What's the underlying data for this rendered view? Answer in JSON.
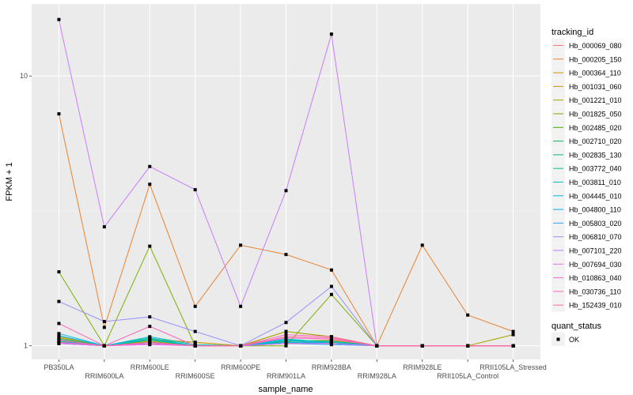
{
  "chart_data": {
    "type": "line",
    "title": "",
    "xlabel": "sample_name",
    "ylabel": "FPKM + 1",
    "yscale": "log10",
    "ylim": [
      0.89,
      18.5
    ],
    "yticks": [
      1,
      10
    ],
    "ytick_labels": [
      "1",
      "10"
    ],
    "grid": true,
    "legend_placement": "right",
    "legend_title": "tracking_id",
    "legend2_title": "quant_status",
    "legend2_items": [
      "OK"
    ],
    "categories": [
      "PB350LA",
      "RRIM600LA",
      "RRIM600LE",
      "RRIM600SE",
      "RRIM600PE",
      "RRIM901LA",
      "RRIM928BA",
      "RRIM928LA",
      "RRIM928LE",
      "RRII105LA_Control",
      "RRII105LA_Stressed"
    ],
    "series": [
      {
        "name": "Hb_000069_080",
        "color": "#F8766D",
        "values": [
          1.05,
          1,
          1.02,
          1,
          1,
          1.02,
          1.03,
          1,
          1,
          1,
          1
        ]
      },
      {
        "name": "Hb_000205_150",
        "color": "#EA8331",
        "values": [
          7.24,
          1.17,
          3.97,
          1.4,
          2.36,
          2.18,
          1.91,
          1,
          2.36,
          1.3,
          1.13
        ]
      },
      {
        "name": "Hb_000364_110",
        "color": "#D89000",
        "values": [
          1.03,
          1,
          1.06,
          1.03,
          1,
          1.04,
          1.05,
          1,
          1,
          1,
          1
        ]
      },
      {
        "name": "Hb_001031_060",
        "color": "#C09B00",
        "values": [
          1.08,
          1,
          1.05,
          1.03,
          1,
          1.13,
          1.08,
          1,
          1,
          1,
          1
        ]
      },
      {
        "name": "Hb_001221_010",
        "color": "#A3A500",
        "values": [
          1.07,
          1,
          1.04,
          1,
          1,
          1.13,
          1.08,
          1,
          1,
          1,
          1.1
        ]
      },
      {
        "name": "Hb_001825_050",
        "color": "#7CAE00",
        "values": [
          1.88,
          1,
          2.34,
          1,
          1,
          1,
          1.55,
          1,
          1,
          1,
          1
        ]
      },
      {
        "name": "Hb_002485_020",
        "color": "#39B600",
        "values": [
          1.04,
          1,
          1.03,
          1,
          1,
          1.02,
          1.04,
          1,
          1,
          1,
          1
        ]
      },
      {
        "name": "Hb_002710_020",
        "color": "#00BB4E",
        "values": [
          1.03,
          1,
          1.02,
          1,
          1,
          1.03,
          1.02,
          1,
          1,
          1,
          1
        ]
      },
      {
        "name": "Hb_002835_130",
        "color": "#00BF7D",
        "values": [
          1.02,
          1,
          1.05,
          1,
          1,
          1.04,
          1.03,
          1,
          1,
          1,
          1
        ]
      },
      {
        "name": "Hb_003772_040",
        "color": "#00C1A3",
        "values": [
          1.06,
          1,
          1.07,
          1,
          1,
          1.05,
          1.04,
          1,
          1,
          1,
          1
        ]
      },
      {
        "name": "Hb_003811_010",
        "color": "#00BFC4",
        "values": [
          1.04,
          1,
          1.08,
          1.01,
          1,
          1.06,
          1.03,
          1,
          1,
          1,
          1
        ]
      },
      {
        "name": "Hb_004445_010",
        "color": "#00BAE0",
        "values": [
          1.11,
          1,
          1.06,
          1,
          1,
          1.05,
          1.02,
          1,
          1,
          1,
          1
        ]
      },
      {
        "name": "Hb_004800_110",
        "color": "#00B0F6",
        "values": [
          1.09,
          1,
          1.03,
          1,
          1,
          1.03,
          1.02,
          1,
          1,
          1,
          1
        ]
      },
      {
        "name": "Hb_005803_020",
        "color": "#35A2FF",
        "values": [
          1.02,
          1,
          1.02,
          1,
          1,
          1.02,
          1.01,
          1,
          1,
          1,
          1
        ]
      },
      {
        "name": "Hb_006810_070",
        "color": "#9590FF",
        "values": [
          1.46,
          1.23,
          1.28,
          1.13,
          1,
          1.22,
          1.66,
          1,
          1,
          1,
          1
        ]
      },
      {
        "name": "Hb_007101_220",
        "color": "#C77CFF",
        "values": [
          16.2,
          2.76,
          4.62,
          3.79,
          1.4,
          3.76,
          14.3,
          1,
          1,
          1,
          1
        ]
      },
      {
        "name": "Hb_007694_030",
        "color": "#E76BF3",
        "values": [
          1.02,
          1,
          1.01,
          1,
          1,
          1.02,
          1.02,
          1,
          1,
          1,
          1
        ]
      },
      {
        "name": "Hb_010863_040",
        "color": "#FA62DB",
        "values": [
          1.03,
          1,
          1.02,
          1,
          1,
          1.07,
          1.06,
          1,
          1,
          1,
          1
        ]
      },
      {
        "name": "Hb_030736_110",
        "color": "#FF62BC",
        "values": [
          1.21,
          1,
          1.18,
          1,
          1,
          1.1,
          1.08,
          1,
          1,
          1,
          1
        ]
      },
      {
        "name": "Hb_152439_010",
        "color": "#FF6C91",
        "values": [
          1.05,
          1,
          1.03,
          1,
          1,
          1.08,
          1.07,
          1,
          1,
          1,
          1
        ]
      }
    ]
  }
}
